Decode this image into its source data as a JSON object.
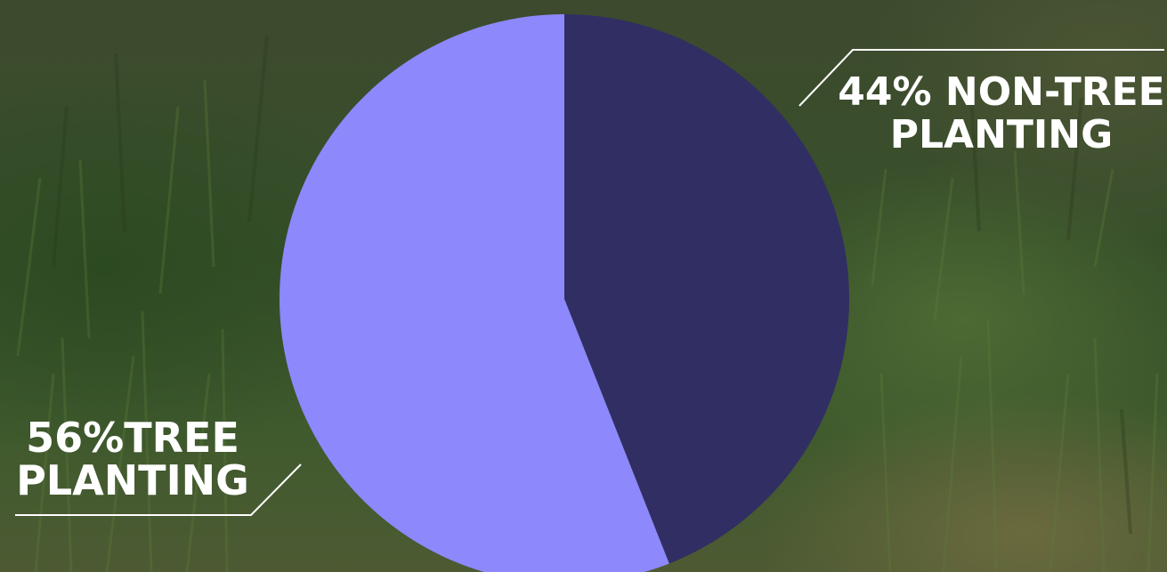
{
  "chart_data": {
    "type": "pie",
    "slices": [
      {
        "label": "Tree planting",
        "value": 56,
        "color": "#8d88fb"
      },
      {
        "label": "Non-tree planting",
        "value": 44,
        "color": "#302e63"
      }
    ],
    "start": "12 o'clock",
    "direction": "clockwise, non-tree first"
  },
  "labels": {
    "tree": {
      "line1": "56%TREE",
      "line2": "PLANTING"
    },
    "nontree": {
      "line1": "44% NON-TREE",
      "line2": "PLANTING"
    }
  },
  "colors": {
    "text": "#ffffff",
    "leader": "#ffffff"
  }
}
